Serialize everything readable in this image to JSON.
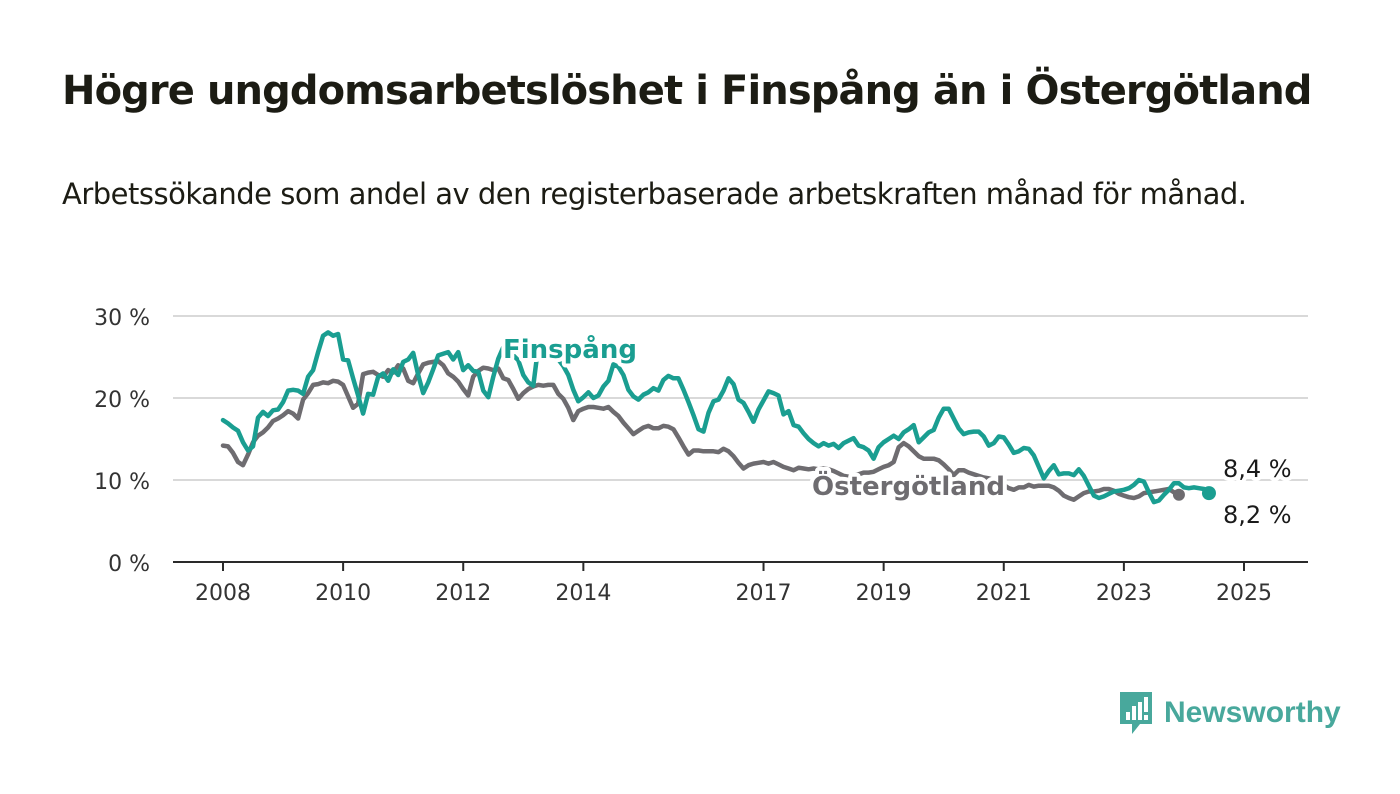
{
  "title": "Högre ungdomsarbetslöshet i Finspång än i Östergötland",
  "subtitle": "Arbetssökande som andel av den registerbaserade arbetskraften månad för månad.",
  "brand": {
    "name": "Newsworthy",
    "icon": "newsworthy-bar-chart-logo-icon",
    "color": "#48a89c"
  },
  "chart_data": {
    "type": "line",
    "x_axis": {
      "ticks": [
        "2008",
        "2010",
        "2012",
        "2014",
        "2017",
        "2019",
        "2021",
        "2023",
        "2025"
      ]
    },
    "y_axis": {
      "ticks": [
        "0 %",
        "10 %",
        "20 %",
        "30 %"
      ],
      "range": [
        0,
        30
      ],
      "grid": true
    },
    "series": [
      {
        "name": "Östergötland",
        "color": "#6e6c70",
        "end_label": "8,2 %",
        "start": "2008-01",
        "values": [
          14.2,
          14.1,
          13.3,
          12.2,
          11.8,
          13.1,
          14.6,
          15.4,
          15.8,
          16.4,
          17.2,
          17.5,
          17.9,
          18.4,
          18.1,
          17.5,
          19.8,
          20.6,
          21.6,
          21.7,
          21.9,
          21.8,
          22.1,
          22.0,
          21.6,
          20.2,
          18.8,
          19.3,
          22.9,
          23.1,
          23.2,
          22.8,
          22.6,
          23.4,
          23.1,
          24.0,
          23.6,
          22.1,
          21.8,
          23.0,
          24.1,
          24.3,
          24.4,
          24.5,
          24.0,
          23.0,
          22.6,
          22.0,
          21.1,
          20.3,
          22.6,
          23.3,
          23.7,
          23.6,
          23.4,
          23.6,
          22.4,
          22.2,
          21.1,
          19.9,
          20.6,
          21.1,
          21.4,
          21.6,
          21.5,
          21.6,
          21.6,
          20.5,
          19.9,
          18.8,
          17.3,
          18.4,
          18.7,
          18.9,
          18.9,
          18.8,
          18.7,
          18.9,
          18.3,
          17.8,
          17.0,
          16.3,
          15.6,
          16.0,
          16.4,
          16.6,
          16.3,
          16.3,
          16.6,
          16.5,
          16.2,
          15.2,
          14.1,
          13.1,
          13.6,
          13.6,
          13.5,
          13.5,
          13.5,
          13.4,
          13.8,
          13.5,
          12.9,
          12.1,
          11.4,
          11.8,
          12.0,
          12.1,
          12.2,
          12.0,
          12.2,
          11.9,
          11.6,
          11.4,
          11.2,
          11.5,
          11.4,
          11.3,
          11.4,
          11.3,
          11.4,
          11.3,
          11.1,
          10.8,
          10.5,
          10.4,
          10.5,
          10.7,
          10.9,
          10.9,
          11.0,
          11.3,
          11.6,
          11.8,
          12.2,
          14.0,
          14.5,
          14.1,
          13.5,
          12.9,
          12.6,
          12.6,
          12.6,
          12.4,
          11.9,
          11.3,
          10.6,
          11.2,
          11.2,
          10.9,
          10.7,
          10.5,
          10.3,
          10.2,
          10.0,
          9.8,
          9.4,
          9.0,
          8.8,
          9.1,
          9.1,
          9.4,
          9.2,
          9.3,
          9.3,
          9.3,
          9.1,
          8.7,
          8.1,
          7.8,
          7.6,
          8.0,
          8.4,
          8.6,
          8.6,
          8.7,
          8.9,
          8.9,
          8.7,
          8.3,
          8.1,
          7.9,
          7.8,
          8.0,
          8.4,
          8.5,
          8.6,
          8.7,
          8.8,
          8.9,
          8.5,
          8.2
        ]
      },
      {
        "name": "Finspång",
        "color": "#1a9e91",
        "end_label": "8,4 %",
        "start": "2008-01",
        "values": [
          17.3,
          16.9,
          16.4,
          16.0,
          14.6,
          13.6,
          14.1,
          17.6,
          18.3,
          17.8,
          18.5,
          18.6,
          19.5,
          20.9,
          21.0,
          20.9,
          20.5,
          22.6,
          23.4,
          25.6,
          27.6,
          28.0,
          27.6,
          27.8,
          24.7,
          24.6,
          22.4,
          20.3,
          18.1,
          20.5,
          20.4,
          22.6,
          23.0,
          22.1,
          23.5,
          22.8,
          24.4,
          24.7,
          25.5,
          22.8,
          20.6,
          21.9,
          23.5,
          25.2,
          25.4,
          25.6,
          24.7,
          25.6,
          23.4,
          24.0,
          23.3,
          23.2,
          20.9,
          20.1,
          22.6,
          24.8,
          26.2,
          26.0,
          25.2,
          24.6,
          22.8,
          21.9,
          21.5,
          26.3,
          26.5,
          26.0,
          25.6,
          24.7,
          23.9,
          22.8,
          21.0,
          19.6,
          20.1,
          20.7,
          20.0,
          20.3,
          21.4,
          22.1,
          24.1,
          23.8,
          22.8,
          21.0,
          20.2,
          19.8,
          20.4,
          20.7,
          21.2,
          20.9,
          22.2,
          22.7,
          22.4,
          22.4,
          21.0,
          19.5,
          17.9,
          16.2,
          15.9,
          18.2,
          19.6,
          19.8,
          20.9,
          22.4,
          21.7,
          19.8,
          19.4,
          18.3,
          17.1,
          18.6,
          19.7,
          20.8,
          20.6,
          20.3,
          18.0,
          18.4,
          16.7,
          16.5,
          15.7,
          15.0,
          14.5,
          14.1,
          14.5,
          14.2,
          14.4,
          13.9,
          14.5,
          14.8,
          15.1,
          14.2,
          14.0,
          13.6,
          12.6,
          14.0,
          14.6,
          15.0,
          15.4,
          15.0,
          15.8,
          16.2,
          16.7,
          14.6,
          15.2,
          15.8,
          16.1,
          17.6,
          18.7,
          18.7,
          17.5,
          16.3,
          15.6,
          15.8,
          15.9,
          15.9,
          15.3,
          14.2,
          14.5,
          15.3,
          15.2,
          14.3,
          13.3,
          13.5,
          13.9,
          13.8,
          13.0,
          11.6,
          10.2,
          11.1,
          11.8,
          10.7,
          10.8,
          10.8,
          10.6,
          11.3,
          10.5,
          9.3,
          8.1,
          7.8,
          8.0,
          8.3,
          8.6,
          8.7,
          8.8,
          9.0,
          9.4,
          10.0,
          9.8,
          8.5,
          7.3,
          7.5,
          8.2,
          8.8,
          9.6,
          9.6,
          9.1,
          9.0,
          9.1,
          9.0,
          8.9,
          8.4
        ]
      }
    ]
  }
}
